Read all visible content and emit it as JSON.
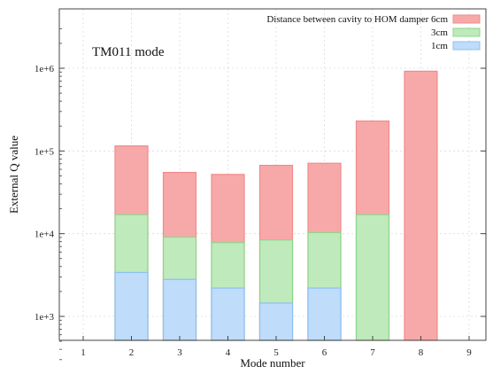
{
  "chart_data": {
    "type": "bar",
    "title": "",
    "annotation": "TM011 mode",
    "xlabel": "Mode number",
    "ylabel": "External Q value",
    "y_scale": "log",
    "ylim": [
      300,
      3000000
    ],
    "xlim": [
      0.5,
      9.5
    ],
    "x_ticks": [
      "1",
      "2",
      "3",
      "4",
      "5",
      "6",
      "7",
      "8",
      "9"
    ],
    "y_ticks": [
      {
        "value": 1000,
        "label": "1e+3"
      },
      {
        "value": 10000,
        "label": "1e+4"
      },
      {
        "value": 100000,
        "label": "1e+5"
      },
      {
        "value": 1000000,
        "label": "1e+6"
      }
    ],
    "grid": true,
    "legend_position": "top-right",
    "series": [
      {
        "name": "Distance between cavity to HOM damper 6cm",
        "color": "#f7a9a9",
        "stroke": "#f28a8a",
        "x": [
          2,
          3,
          4,
          5,
          6,
          7,
          8
        ],
        "values": [
          115000,
          55000,
          52000,
          67000,
          71000,
          230000,
          920000
        ]
      },
      {
        "name": "3cm",
        "color": "#bfeabc",
        "stroke": "#8dd58a",
        "x": [
          2,
          3,
          4,
          5,
          6,
          7
        ],
        "values": [
          17000,
          9100,
          7800,
          8400,
          10300,
          17000
        ]
      },
      {
        "name": "1cm",
        "color": "#bfdcfb",
        "stroke": "#8cc0f2",
        "x": [
          2,
          3,
          4,
          5,
          6
        ],
        "values": [
          3400,
          2800,
          2200,
          1450,
          2200
        ]
      }
    ]
  }
}
